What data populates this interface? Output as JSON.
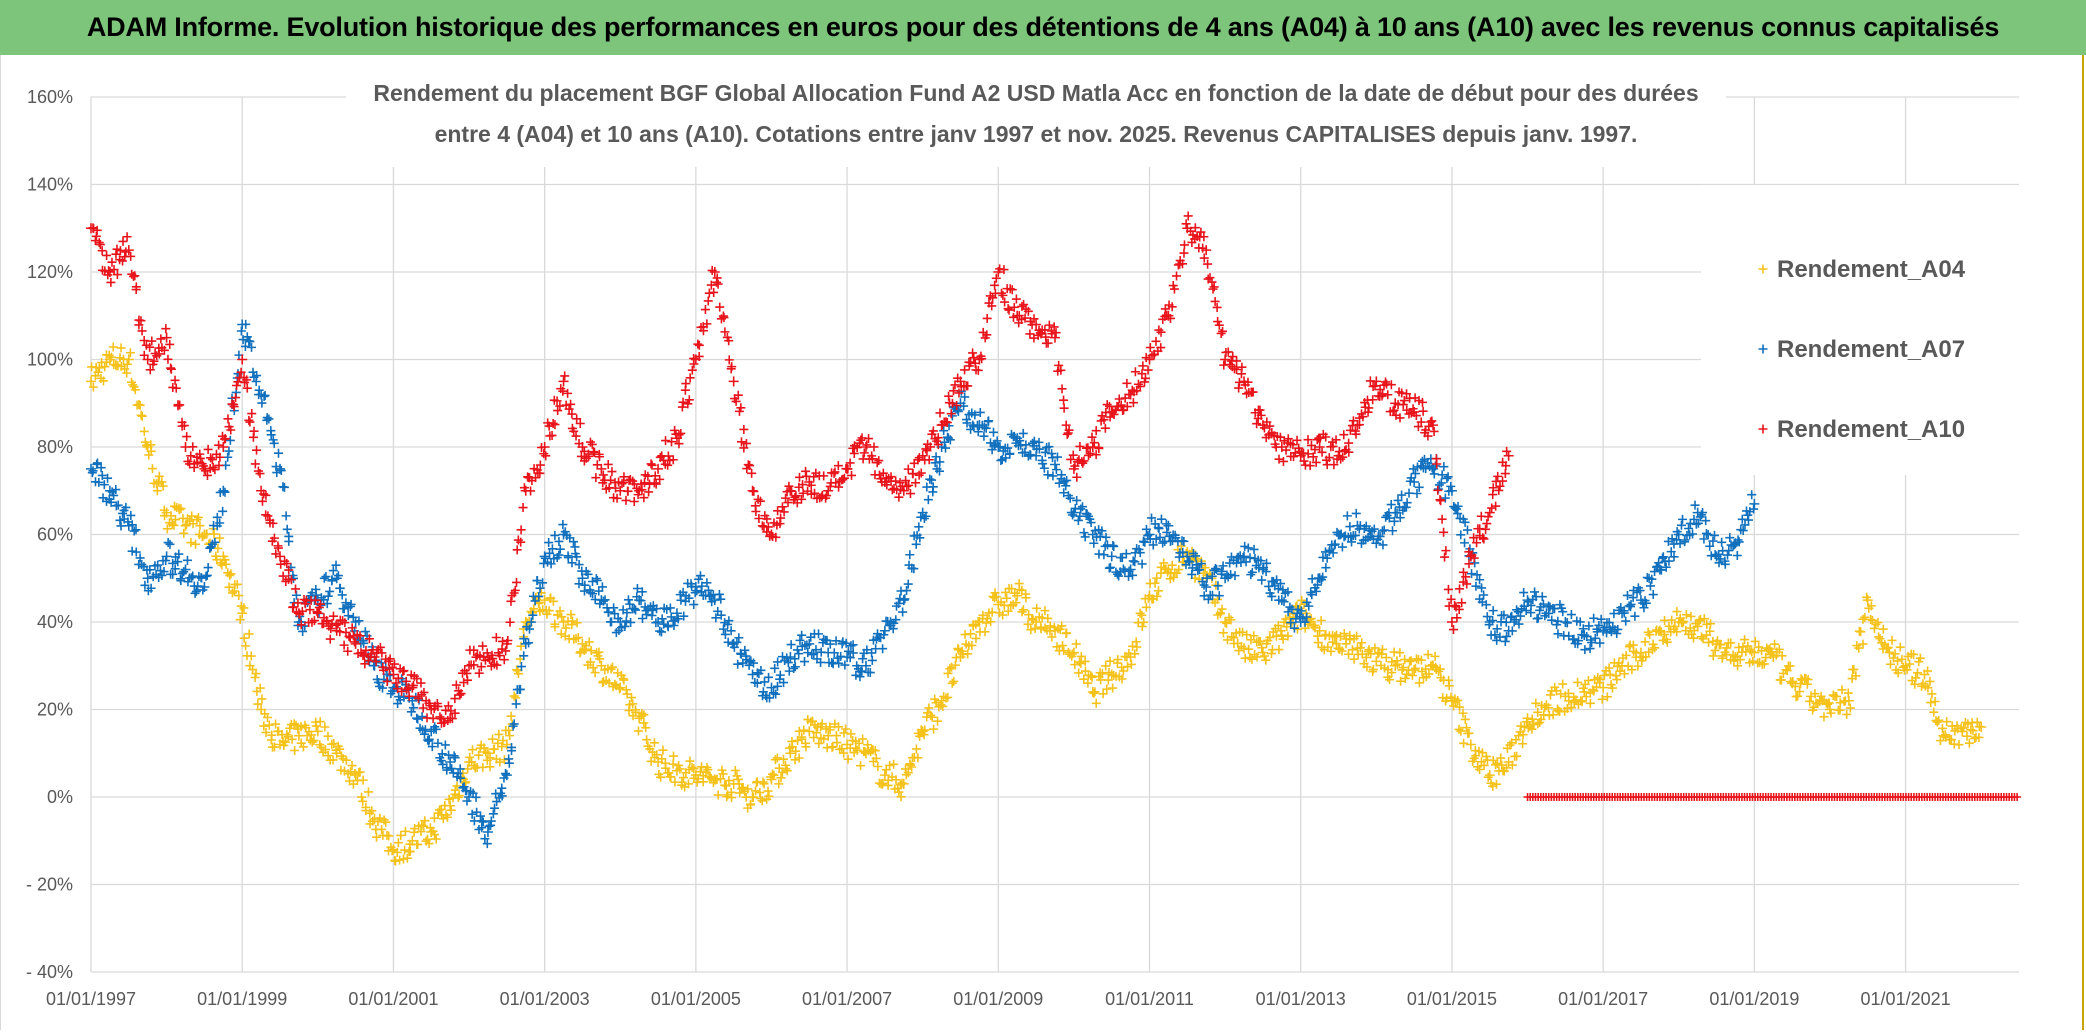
{
  "banner": {
    "title": "ADAM Informe. Evolution historique des performances en euros pour des détentions de 4 ans (A04) à 10 ans (A10) avec les revenus connus capitalisés"
  },
  "chart_data": {
    "type": "scatter",
    "title_lines": [
      "Rendement du placement BGF Global Allocation Fund A2 USD Matla Acc en fonction de la date de début pour des durées",
      "entre 4 (A04) et 10 ans (A10). Cotations entre janv 1997 et nov. 2025. Revenus CAPITALISES depuis janv. 1997."
    ],
    "xlabel": "",
    "ylabel": "",
    "xlim": [
      1997.0,
      2022.5
    ],
    "ylim": [
      -40,
      160
    ],
    "y_ticks": [
      -40,
      -20,
      0,
      20,
      40,
      60,
      80,
      100,
      120,
      140,
      160
    ],
    "y_tick_labels": [
      "- 40%",
      "- 20%",
      "0%",
      "20%",
      "40%",
      "60%",
      "80%",
      "100%",
      "120%",
      "140%",
      "160%"
    ],
    "x_ticks": [
      1997,
      1999,
      2001,
      2003,
      2005,
      2007,
      2009,
      2011,
      2013,
      2015,
      2017,
      2019,
      2021
    ],
    "x_tick_labels": [
      "01/01/1997",
      "01/01/1999",
      "01/01/2001",
      "01/01/2003",
      "01/01/2005",
      "01/01/2007",
      "01/01/2009",
      "01/01/2011",
      "01/01/2013",
      "01/01/2015",
      "01/01/2017",
      "01/01/2019",
      "01/01/2021"
    ],
    "grid": true,
    "legend_position": "right",
    "marker": "plus",
    "series": [
      {
        "name": "Rendement_A04",
        "color": "#f5c21b",
        "x": [
          1997.0,
          1997.25,
          1997.5,
          1997.75,
          1998.0,
          1998.25,
          1998.5,
          1998.75,
          1999.0,
          1999.25,
          1999.5,
          1999.75,
          2000.0,
          2000.25,
          2000.5,
          2000.75,
          2001.0,
          2001.25,
          2001.5,
          2001.75,
          2002.0,
          2002.25,
          2002.5,
          2002.75,
          2003.0,
          2003.25,
          2003.5,
          2003.75,
          2004.0,
          2004.25,
          2004.5,
          2004.75,
          2005.0,
          2005.25,
          2005.5,
          2005.75,
          2006.0,
          2006.25,
          2006.5,
          2006.75,
          2007.0,
          2007.25,
          2007.5,
          2007.75,
          2008.0,
          2008.25,
          2008.5,
          2008.75,
          2009.0,
          2009.25,
          2009.5,
          2009.75,
          2010.0,
          2010.25,
          2010.5,
          2010.75,
          2011.0,
          2011.25,
          2011.5,
          2011.75,
          2012.0,
          2012.25,
          2012.5,
          2012.75,
          2013.0,
          2013.25,
          2013.5,
          2013.75,
          2014.0,
          2014.25,
          2014.5,
          2014.75,
          2015.0,
          2015.25,
          2015.5,
          2015.75,
          2016.0,
          2016.25,
          2016.5,
          2016.75,
          2017.0,
          2017.25,
          2017.5,
          2017.75,
          2018.0,
          2018.25,
          2018.5,
          2018.75,
          2019.0,
          2019.25,
          2019.5,
          2019.75,
          2020.0,
          2020.25,
          2020.5,
          2020.75,
          2021.0,
          2021.25,
          2021.5,
          2021.75,
          2022.0
        ],
        "values": [
          95,
          100,
          100,
          80,
          65,
          62,
          60,
          55,
          42,
          20,
          12,
          14,
          15,
          10,
          5,
          -5,
          -12,
          -10,
          -8,
          -2,
          8,
          10,
          12,
          40,
          45,
          40,
          35,
          30,
          25,
          18,
          8,
          6,
          5,
          4,
          3,
          0,
          4,
          10,
          15,
          14,
          12,
          10,
          5,
          3,
          15,
          22,
          32,
          40,
          44,
          46,
          40,
          38,
          33,
          24,
          28,
          32,
          46,
          52,
          56,
          50,
          40,
          34,
          33,
          37,
          42,
          38,
          34,
          34,
          31,
          30,
          29,
          30,
          22,
          12,
          5,
          8,
          18,
          21,
          23,
          24,
          25,
          30,
          33,
          38,
          40,
          39,
          35,
          32,
          33,
          32,
          26,
          23,
          20,
          22,
          45,
          34,
          30,
          28,
          14,
          15,
          16
        ]
      },
      {
        "name": "Rendement_A07",
        "color": "#1170bd",
        "x": [
          1997.0,
          1997.25,
          1997.5,
          1997.75,
          1998.0,
          1998.25,
          1998.5,
          1998.75,
          1999.0,
          1999.25,
          1999.5,
          1999.75,
          2000.0,
          2000.25,
          2000.5,
          2000.75,
          2001.0,
          2001.25,
          2001.5,
          2001.75,
          2002.0,
          2002.25,
          2002.5,
          2002.75,
          2003.0,
          2003.25,
          2003.5,
          2003.75,
          2004.0,
          2004.25,
          2004.5,
          2004.75,
          2005.0,
          2005.25,
          2005.5,
          2005.75,
          2006.0,
          2006.25,
          2006.5,
          2006.75,
          2007.0,
          2007.25,
          2007.5,
          2007.75,
          2008.0,
          2008.25,
          2008.5,
          2008.75,
          2009.0,
          2009.25,
          2009.5,
          2009.75,
          2010.0,
          2010.25,
          2010.5,
          2010.75,
          2011.0,
          2011.25,
          2011.5,
          2011.75,
          2012.0,
          2012.25,
          2012.5,
          2012.75,
          2013.0,
          2013.25,
          2013.5,
          2013.75,
          2014.0,
          2014.25,
          2014.5,
          2014.75,
          2015.0,
          2015.25,
          2015.5,
          2015.75,
          2016.0,
          2016.25,
          2016.5,
          2016.75,
          2017.0,
          2017.25,
          2017.5,
          2017.75,
          2018.0,
          2018.25,
          2018.5,
          2018.75,
          2019.0
        ],
        "values": [
          75,
          70,
          62,
          50,
          55,
          52,
          48,
          70,
          108,
          92,
          75,
          40,
          45,
          50,
          40,
          30,
          25,
          22,
          15,
          8,
          0,
          -8,
          5,
          35,
          55,
          60,
          50,
          45,
          40,
          45,
          40,
          42,
          48,
          45,
          35,
          28,
          25,
          32,
          35,
          33,
          32,
          30,
          38,
          45,
          65,
          80,
          90,
          85,
          80,
          82,
          78,
          76,
          65,
          60,
          55,
          52,
          60,
          62,
          55,
          48,
          50,
          55,
          52,
          45,
          40,
          50,
          60,
          62,
          58,
          65,
          72,
          75,
          70,
          55,
          40,
          38,
          45,
          42,
          40,
          37,
          38,
          42,
          45,
          52,
          60,
          65,
          55,
          58,
          67
        ]
      },
      {
        "name": "Rendement_A10",
        "color": "#e8141b",
        "x": [
          1997.0,
          1997.25,
          1997.5,
          1997.75,
          1998.0,
          1998.25,
          1998.5,
          1998.75,
          1999.0,
          1999.25,
          1999.5,
          1999.75,
          2000.0,
          2000.25,
          2000.5,
          2000.75,
          2001.0,
          2001.25,
          2001.5,
          2001.75,
          2002.0,
          2002.25,
          2002.5,
          2002.75,
          2003.0,
          2003.25,
          2003.5,
          2003.75,
          2004.0,
          2004.25,
          2004.5,
          2004.75,
          2005.0,
          2005.25,
          2005.5,
          2005.75,
          2006.0,
          2006.25,
          2006.5,
          2006.75,
          2007.0,
          2007.25,
          2007.5,
          2007.75,
          2008.0,
          2008.25,
          2008.5,
          2008.75,
          2009.0,
          2009.25,
          2009.5,
          2009.75,
          2010.0,
          2010.25,
          2010.5,
          2010.75,
          2011.0,
          2011.25,
          2011.5,
          2011.75,
          2012.0,
          2012.25,
          2012.5,
          2012.75,
          2013.0,
          2013.25,
          2013.5,
          2013.75,
          2014.0,
          2014.25,
          2014.5,
          2014.75,
          2015.0,
          2015.25,
          2015.5,
          2015.75
        ],
        "values": [
          130,
          120,
          125,
          100,
          105,
          80,
          75,
          80,
          100,
          70,
          55,
          42,
          42,
          38,
          35,
          32,
          28,
          25,
          20,
          18,
          30,
          32,
          35,
          70,
          80,
          95,
          80,
          75,
          70,
          70,
          75,
          82,
          100,
          120,
          95,
          70,
          60,
          70,
          72,
          70,
          75,
          80,
          72,
          70,
          78,
          85,
          95,
          100,
          120,
          110,
          108,
          105,
          75,
          80,
          88,
          92,
          100,
          110,
          130,
          125,
          100,
          95,
          85,
          80,
          78,
          80,
          78,
          85,
          95,
          90,
          88,
          85,
          40,
          55,
          65,
          78
        ]
      },
      {
        "name": "",
        "color": "#e8141b",
        "x": [
          2016.0,
          2022.5
        ],
        "values": [
          0,
          0
        ],
        "note_flat_segment": true
      }
    ]
  }
}
